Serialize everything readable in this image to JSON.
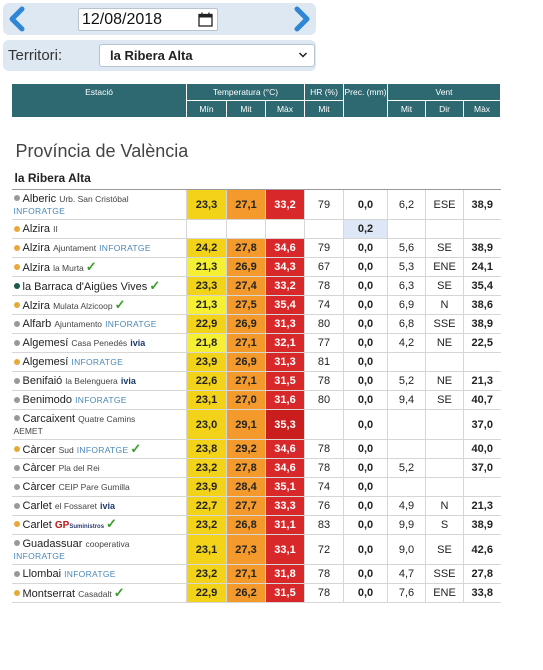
{
  "date_bar": {
    "date": "12/08/2018"
  },
  "territory": {
    "label": "Territori:",
    "selected": "la Ribera Alta"
  },
  "headers": {
    "estacio": "Estació",
    "temperatura": "Temperatura (°C)",
    "hr": "HR (%)",
    "prec": "Prec. (mm)",
    "vent": "Vent",
    "min": "Mín",
    "mit": "Mit",
    "max": "Màx",
    "hr_mit": "Mit",
    "vent_mit": "Mit",
    "vent_dir": "Dir",
    "vent_max": "Màx"
  },
  "province": "Província de València",
  "region": "la Ribera Alta",
  "colors": {
    "header_teal": "#2e6870",
    "tmin": "#f3d31a",
    "tmit": "#f49a2c",
    "tmax": "#d9282a"
  },
  "stations": [
    {
      "dot": "g",
      "name": "Alberic",
      "sub": "Urb. San Cristóbal",
      "logo": "info",
      "logo_text": "INFORATGE",
      "check": false,
      "min": "23,3",
      "mit": "27,1",
      "max": "33,2",
      "hr": "79",
      "prec": "0,0",
      "vmit": "6,2",
      "dir": "ESE",
      "vmax": "38,9",
      "tall": true
    },
    {
      "dot": "o",
      "name": "Alzira",
      "sub": "II",
      "logo": "",
      "logo_text": "",
      "check": false,
      "min": "",
      "mit": "",
      "max": "",
      "hr": "",
      "prec": "0,2",
      "vmit": "",
      "dir": "",
      "vmax": "",
      "prec_hl": true
    },
    {
      "dot": "o",
      "name": "Alzira",
      "sub": "Ajuntament",
      "logo": "info",
      "logo_text": "INFORATGE",
      "check": false,
      "min": "24,2",
      "mit": "27,8",
      "max": "34,6",
      "hr": "79",
      "prec": "0,0",
      "vmit": "5,6",
      "dir": "SE",
      "vmax": "38,9"
    },
    {
      "dot": "o",
      "name": "Alzira",
      "sub": "la Murta",
      "logo": "",
      "logo_text": "",
      "check": true,
      "min": "21,3",
      "mit": "26,9",
      "max": "34,3",
      "hr": "67",
      "prec": "0,0",
      "vmit": "5,3",
      "dir": "ENE",
      "vmax": "24,1",
      "ymin": true
    },
    {
      "dot": "t",
      "name": "la Barraca d'Aigües Vives",
      "sub": "",
      "logo": "",
      "logo_text": "",
      "check": true,
      "min": "23,3",
      "mit": "27,4",
      "max": "33,2",
      "hr": "78",
      "prec": "0,0",
      "vmit": "6,3",
      "dir": "SE",
      "vmax": "35,4"
    },
    {
      "dot": "o",
      "name": "Alzira",
      "sub": "Mulata Alzicoop",
      "logo": "",
      "logo_text": "",
      "check": true,
      "min": "21,3",
      "mit": "27,5",
      "max": "35,4",
      "hr": "74",
      "prec": "0,0",
      "vmit": "6,9",
      "dir": "N",
      "vmax": "38,6",
      "ymin": true
    },
    {
      "dot": "g",
      "name": "Alfarb",
      "sub": "Ajuntamento",
      "logo": "info",
      "logo_text": "INFORATGE",
      "check": false,
      "min": "22,9",
      "mit": "26,9",
      "max": "31,3",
      "hr": "80",
      "prec": "0,0",
      "vmit": "6,8",
      "dir": "SSE",
      "vmax": "38,9"
    },
    {
      "dot": "g",
      "name": "Algemesí",
      "sub": "Casa Penedés",
      "logo": "ivia",
      "logo_text": "ivia",
      "check": false,
      "min": "21,8",
      "mit": "27,1",
      "max": "32,1",
      "hr": "77",
      "prec": "0,0",
      "vmit": "4,2",
      "dir": "NE",
      "vmax": "22,5",
      "ymin": true
    },
    {
      "dot": "o",
      "name": "Algemesí",
      "sub": "",
      "logo": "info",
      "logo_text": "INFORATGE",
      "check": false,
      "min": "23,9",
      "mit": "26,9",
      "max": "31,3",
      "hr": "81",
      "prec": "0,0",
      "vmit": "",
      "dir": "",
      "vmax": ""
    },
    {
      "dot": "g",
      "name": "Benifaió",
      "sub": "la Belenguera",
      "logo": "ivia",
      "logo_text": "ivia",
      "check": false,
      "min": "22,6",
      "mit": "27,1",
      "max": "31,5",
      "hr": "78",
      "prec": "0,0",
      "vmit": "5,2",
      "dir": "NE",
      "vmax": "21,3"
    },
    {
      "dot": "g",
      "name": "Benimodo",
      "sub": "",
      "logo": "info",
      "logo_text": "INFORATGE",
      "check": false,
      "min": "23,1",
      "mit": "27,0",
      "max": "31,6",
      "hr": "80",
      "prec": "0,0",
      "vmit": "9,4",
      "dir": "SE",
      "vmax": "40,7"
    },
    {
      "dot": "g",
      "name": "Carcaixent",
      "sub": "Quatre Camins",
      "logo": "aemet",
      "logo_text": "AEMET",
      "check": false,
      "min": "23,0",
      "mit": "29,1",
      "max": "35,3",
      "hr": "",
      "prec": "0,0",
      "vmit": "",
      "dir": "",
      "vmax": "37,0",
      "tall": true,
      "dkmax": true
    },
    {
      "dot": "o",
      "name": "Càrcer",
      "sub": "Sud",
      "logo": "info",
      "logo_text": "INFORATGE",
      "check": true,
      "min": "23,8",
      "mit": "29,2",
      "max": "34,6",
      "hr": "78",
      "prec": "0,0",
      "vmit": "",
      "dir": "",
      "vmax": "40,0"
    },
    {
      "dot": "g",
      "name": "Càrcer",
      "sub": "Pla del Rei",
      "logo": "",
      "logo_text": "",
      "check": false,
      "min": "23,2",
      "mit": "27,8",
      "max": "34,6",
      "hr": "78",
      "prec": "0,0",
      "vmit": "5,2",
      "dir": "",
      "vmax": "37,0"
    },
    {
      "dot": "g",
      "name": "Càrcer",
      "sub": "CEIP Pare Gumilla",
      "logo": "",
      "logo_text": "",
      "check": false,
      "min": "23,9",
      "mit": "28,4",
      "max": "35,1",
      "hr": "74",
      "prec": "0,0",
      "vmit": "",
      "dir": "",
      "vmax": ""
    },
    {
      "dot": "g",
      "name": "Carlet",
      "sub": "el Fossaret",
      "logo": "ivia",
      "logo_text": "ivia",
      "check": false,
      "min": "22,7",
      "mit": "27,7",
      "max": "33,3",
      "hr": "76",
      "prec": "0,0",
      "vmit": "4,9",
      "dir": "N",
      "vmax": "21,3"
    },
    {
      "dot": "o",
      "name": "Carlet",
      "sub": "",
      "logo": "gp",
      "logo_text": "GP",
      "logo_small": "Suministros",
      "check": true,
      "min": "23,2",
      "mit": "26,8",
      "max": "31,1",
      "hr": "83",
      "prec": "0,0",
      "vmit": "9,9",
      "dir": "S",
      "vmax": "38,9"
    },
    {
      "dot": "g",
      "name": "Guadassuar",
      "sub": "cooperativa",
      "logo": "info",
      "logo_text": "INFORATGE",
      "check": false,
      "min": "23,1",
      "mit": "27,3",
      "max": "33,1",
      "hr": "72",
      "prec": "0,0",
      "vmit": "9,0",
      "dir": "SE",
      "vmax": "42,6",
      "tall": true
    },
    {
      "dot": "g",
      "name": "Llombai",
      "sub": "",
      "logo": "info",
      "logo_text": "INFORATGE",
      "check": false,
      "min": "23,2",
      "mit": "27,1",
      "max": "31,8",
      "hr": "78",
      "prec": "0,0",
      "vmit": "4,7",
      "dir": "SSE",
      "vmax": "27,8"
    },
    {
      "dot": "o",
      "name": "Montserrat",
      "sub": "Casadalt",
      "logo": "",
      "logo_text": "",
      "check": true,
      "min": "22,9",
      "mit": "26,2",
      "max": "31,5",
      "hr": "78",
      "prec": "0,0",
      "vmit": "7,6",
      "dir": "ENE",
      "vmax": "33,8"
    }
  ]
}
